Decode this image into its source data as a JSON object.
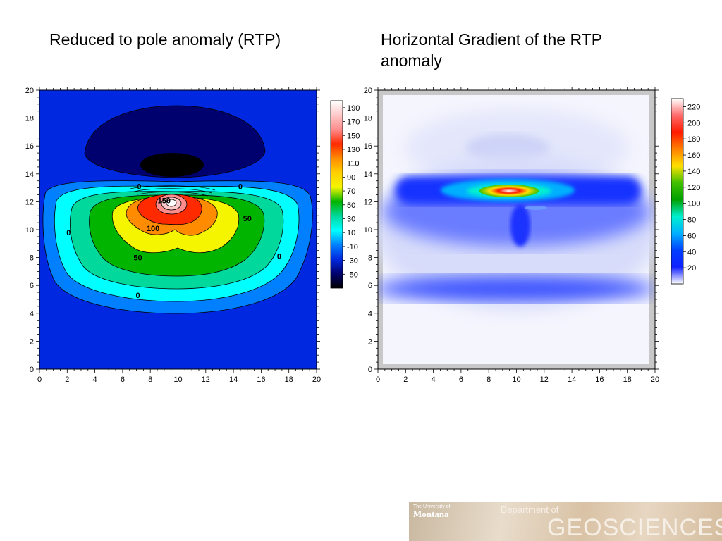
{
  "titles": {
    "left": "Reduced to pole anomaly (RTP)",
    "right": "Horizontal Gradient of the RTP anomaly"
  },
  "footer": {
    "university_small": "The University of",
    "university": "Montana",
    "department": "Department of",
    "name": "GEOSCIENCES"
  },
  "chart_data": [
    {
      "type": "heatmap",
      "title": "Reduced to pole anomaly (RTP)",
      "xlim": [
        0,
        20
      ],
      "ylim": [
        0,
        20
      ],
      "x_ticks": [
        0,
        2,
        4,
        6,
        8,
        10,
        12,
        14,
        16,
        18,
        20
      ],
      "y_ticks": [
        0,
        2,
        4,
        6,
        8,
        10,
        12,
        14,
        16,
        18,
        20
      ],
      "legend_position": "right",
      "colorbar": {
        "labels": [
          190,
          170,
          150,
          130,
          110,
          90,
          70,
          50,
          30,
          10,
          -10,
          -30,
          -50
        ],
        "colors": [
          "#ffffff",
          "#ffc8c8",
          "#ff8c8c",
          "#ff2a00",
          "#ff8c00",
          "#ffd000",
          "#f5f500",
          "#00b400",
          "#00d89c",
          "#00ffff",
          "#0080ff",
          "#0028e0",
          "#00006e",
          "#000000"
        ]
      },
      "contour_labels": [
        {
          "text": "0",
          "x": 7.2,
          "y": 12.9
        },
        {
          "text": "0",
          "x": 14.5,
          "y": 12.9
        },
        {
          "text": "0",
          "x": 2.1,
          "y": 9.6
        },
        {
          "text": "0",
          "x": 17.3,
          "y": 7.9
        },
        {
          "text": "0",
          "x": 7.1,
          "y": 5.1
        },
        {
          "text": "50",
          "x": 15.0,
          "y": 10.6
        },
        {
          "text": "50",
          "x": 7.1,
          "y": 7.8
        },
        {
          "text": "100",
          "x": 8.2,
          "y": 9.9
        },
        {
          "text": "150",
          "x": 9.0,
          "y": 11.9
        }
      ]
    },
    {
      "type": "heatmap",
      "title": "Horizontal Gradient of the RTP anomaly",
      "xlim": [
        0,
        20
      ],
      "ylim": [
        0,
        20
      ],
      "x_ticks": [
        0,
        2,
        4,
        6,
        8,
        10,
        12,
        14,
        16,
        18,
        20
      ],
      "y_ticks": [
        0,
        2,
        4,
        6,
        8,
        10,
        12,
        14,
        16,
        18,
        20
      ],
      "legend_position": "right",
      "colorbar": {
        "labels": [
          220,
          200,
          180,
          160,
          140,
          120,
          100,
          80,
          60,
          40,
          20
        ],
        "colors": [
          "#ffffff",
          "#ff6a6a",
          "#ff1a00",
          "#ff8000",
          "#ffe000",
          "#40c000",
          "#00a000",
          "#00f0d0",
          "#00b0ff",
          "#0040ff",
          "#1020ff",
          "#ffffff"
        ]
      }
    }
  ]
}
